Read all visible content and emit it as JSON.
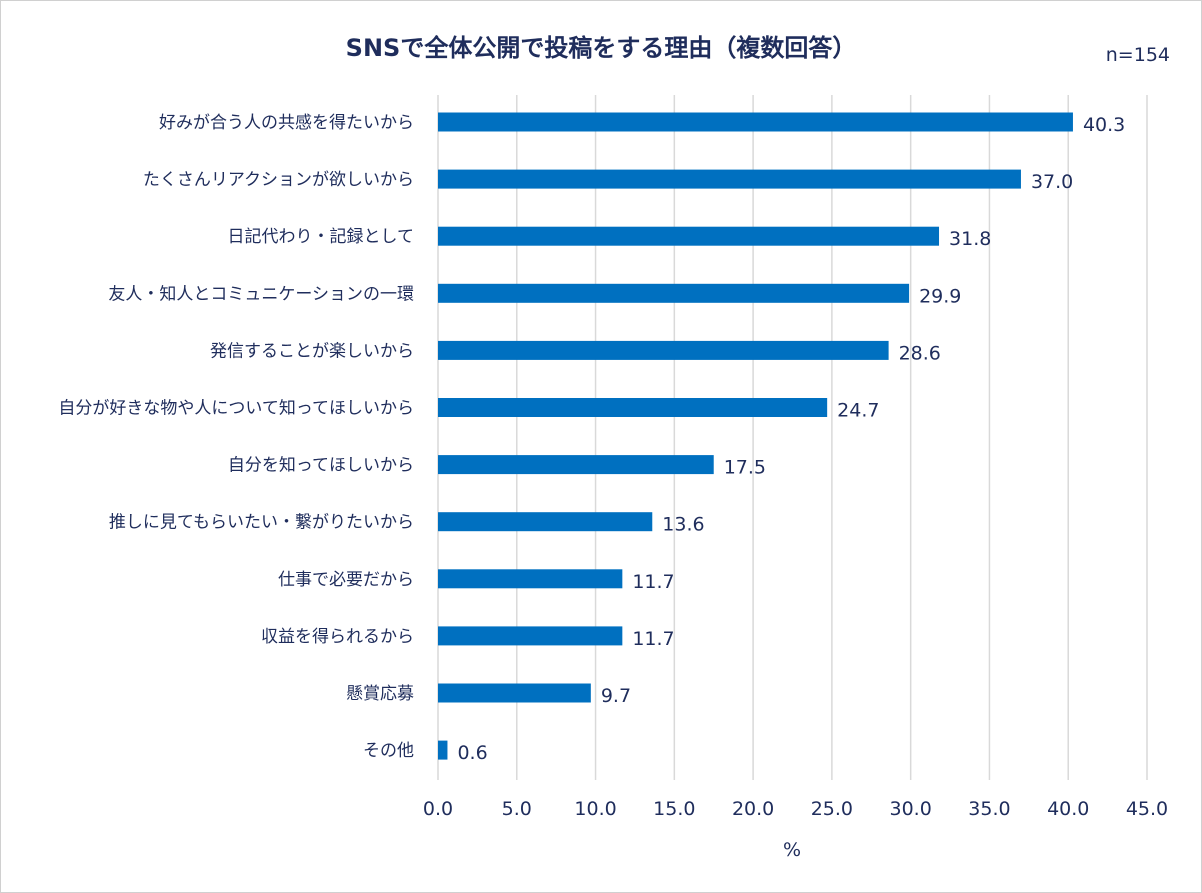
{
  "chart_data": {
    "type": "bar",
    "orientation": "horizontal",
    "title": "SNSで全体公開で投稿をする理由（複数回答）",
    "note": "n=154",
    "xlabel": "%",
    "ylabel": "",
    "xlim": [
      0,
      45
    ],
    "xticks": [
      "0.0",
      "5.0",
      "10.0",
      "15.0",
      "20.0",
      "25.0",
      "30.0",
      "35.0",
      "40.0",
      "45.0"
    ],
    "grid": "vertical",
    "bar_color": "#0070c0",
    "categories": [
      "好みが合う人の共感を得たいから",
      "たくさんリアクションが欲しいから",
      "日記代わり・記録として",
      "友人・知人とコミュニケーションの一環",
      "発信することが楽しいから",
      "自分が好きな物や人について知ってほしいから",
      "自分を知ってほしいから",
      "推しに見てもらいたい・繋がりたいから",
      "仕事で必要だから",
      "収益を得られるから",
      "懸賞応募",
      "その他"
    ],
    "values": [
      40.3,
      37.0,
      31.8,
      29.9,
      28.6,
      24.7,
      17.5,
      13.6,
      11.7,
      11.7,
      9.7,
      0.6
    ],
    "data_labels": [
      "40.3",
      "37.0",
      "31.8",
      "29.9",
      "28.6",
      "24.7",
      "17.5",
      "13.6",
      "11.7",
      "11.7",
      "9.7",
      "0.6"
    ]
  }
}
